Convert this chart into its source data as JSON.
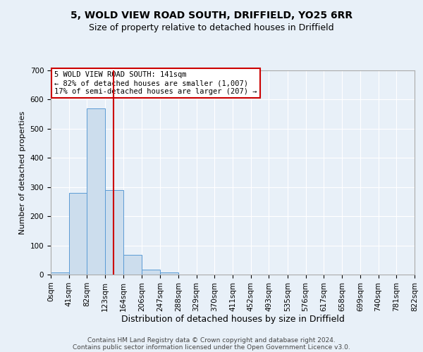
{
  "title": "5, WOLD VIEW ROAD SOUTH, DRIFFIELD, YO25 6RR",
  "subtitle": "Size of property relative to detached houses in Driffield",
  "xlabel": "Distribution of detached houses by size in Driffield",
  "ylabel": "Number of detached properties",
  "bin_edges": [
    0,
    41,
    82,
    123,
    164,
    206,
    247,
    288,
    329,
    370,
    411,
    452,
    493,
    535,
    576,
    617,
    658,
    699,
    740,
    781,
    822
  ],
  "bin_labels": [
    "0sqm",
    "41sqm",
    "82sqm",
    "123sqm",
    "164sqm",
    "206sqm",
    "247sqm",
    "288sqm",
    "329sqm",
    "370sqm",
    "411sqm",
    "452sqm",
    "493sqm",
    "535sqm",
    "576sqm",
    "617sqm",
    "658sqm",
    "699sqm",
    "740sqm",
    "781sqm",
    "822sqm"
  ],
  "bar_heights": [
    8,
    280,
    570,
    290,
    68,
    16,
    8,
    0,
    0,
    0,
    0,
    0,
    0,
    0,
    0,
    0,
    0,
    0,
    0,
    0
  ],
  "bar_color": "#ccdded",
  "bar_edge_color": "#5b9bd5",
  "property_value": 141,
  "red_line_color": "#cc0000",
  "annotation_text": "5 WOLD VIEW ROAD SOUTH: 141sqm\n← 82% of detached houses are smaller (1,007)\n17% of semi-detached houses are larger (207) →",
  "annotation_box_color": "#ffffff",
  "annotation_box_edge_color": "#cc0000",
  "ylim": [
    0,
    700
  ],
  "yticks": [
    0,
    100,
    200,
    300,
    400,
    500,
    600,
    700
  ],
  "background_color": "#e8f0f8",
  "grid_color": "#ffffff",
  "footer_line1": "Contains HM Land Registry data © Crown copyright and database right 2024.",
  "footer_line2": "Contains public sector information licensed under the Open Government Licence v3.0.",
  "title_fontsize": 10,
  "subtitle_fontsize": 9,
  "xlabel_fontsize": 9,
  "ylabel_fontsize": 8,
  "tick_fontsize": 7.5,
  "annotation_fontsize": 7.5,
  "footer_fontsize": 6.5
}
